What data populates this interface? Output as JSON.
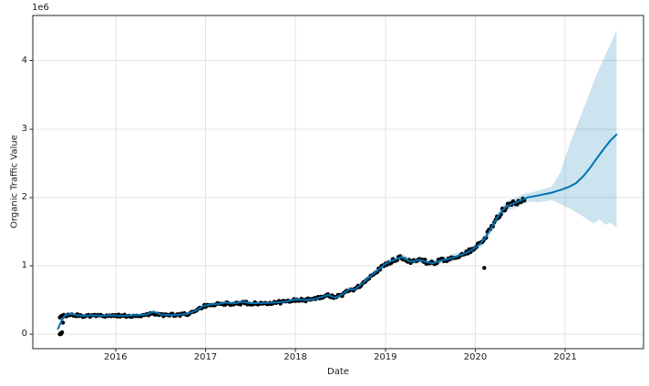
{
  "chart_data": {
    "type": "line",
    "title": "",
    "xlabel": "Date",
    "ylabel": "Organic Traffic Value",
    "y_offset_text": "1e6",
    "y_unit_multiplier": 1000000,
    "value_units": "millions",
    "xlim": [
      2015.08,
      2021.87
    ],
    "ylim": [
      -0.21,
      4.66
    ],
    "xticks": [
      2016,
      2017,
      2018,
      2019,
      2020,
      2021
    ],
    "xtick_labels": [
      "2016",
      "2017",
      "2018",
      "2019",
      "2020",
      "2021"
    ],
    "yticks": [
      0,
      1,
      2,
      3,
      4
    ],
    "ytick_labels": [
      "0",
      "1",
      "2",
      "3",
      "4"
    ],
    "grid": true,
    "legend": false,
    "colors": {
      "line": "#0072B2",
      "band": "rgba(0,114,178,0.2)",
      "points": "#000000",
      "grid": "#e3e3e3",
      "spine": "#262626",
      "background": "#ffffff"
    },
    "series": [
      {
        "name": "observed",
        "type": "scatter",
        "marker": "dot",
        "marker_radius": 2.2,
        "backbone": [
          [
            2015.38,
            0.26
          ],
          [
            2015.44,
            0.27
          ],
          [
            2015.5,
            0.285
          ],
          [
            2015.56,
            0.275
          ],
          [
            2015.65,
            0.27
          ],
          [
            2015.75,
            0.275
          ],
          [
            2015.85,
            0.27
          ],
          [
            2015.95,
            0.275
          ],
          [
            2016.05,
            0.27
          ],
          [
            2016.15,
            0.27
          ],
          [
            2016.25,
            0.275
          ],
          [
            2016.35,
            0.285
          ],
          [
            2016.42,
            0.3
          ],
          [
            2016.5,
            0.285
          ],
          [
            2016.6,
            0.28
          ],
          [
            2016.7,
            0.285
          ],
          [
            2016.8,
            0.295
          ],
          [
            2016.9,
            0.34
          ],
          [
            2016.97,
            0.405
          ],
          [
            2017.05,
            0.43
          ],
          [
            2017.15,
            0.44
          ],
          [
            2017.22,
            0.45
          ],
          [
            2017.3,
            0.445
          ],
          [
            2017.42,
            0.46
          ],
          [
            2017.5,
            0.45
          ],
          [
            2017.6,
            0.455
          ],
          [
            2017.7,
            0.46
          ],
          [
            2017.8,
            0.465
          ],
          [
            2017.9,
            0.475
          ],
          [
            2018.0,
            0.505
          ],
          [
            2018.1,
            0.5
          ],
          [
            2018.21,
            0.51
          ],
          [
            2018.3,
            0.55
          ],
          [
            2018.36,
            0.575
          ],
          [
            2018.44,
            0.54
          ],
          [
            2018.52,
            0.58
          ],
          [
            2018.6,
            0.655
          ],
          [
            2018.66,
            0.65
          ],
          [
            2018.73,
            0.73
          ],
          [
            2018.82,
            0.83
          ],
          [
            2018.91,
            0.93
          ],
          [
            2019.0,
            1.03
          ],
          [
            2019.1,
            1.09
          ],
          [
            2019.18,
            1.13
          ],
          [
            2019.28,
            1.06
          ],
          [
            2019.38,
            1.09
          ],
          [
            2019.47,
            1.05
          ],
          [
            2019.53,
            1.04
          ],
          [
            2019.62,
            1.08
          ],
          [
            2019.7,
            1.1
          ],
          [
            2019.8,
            1.14
          ],
          [
            2019.9,
            1.19
          ],
          [
            2019.98,
            1.25
          ],
          [
            2020.06,
            1.33
          ],
          [
            2020.12,
            1.43
          ],
          [
            2020.18,
            1.56
          ],
          [
            2020.24,
            1.7
          ],
          [
            2020.3,
            1.81
          ],
          [
            2020.36,
            1.88
          ],
          [
            2020.42,
            1.91
          ],
          [
            2020.48,
            1.93
          ],
          [
            2020.56,
            1.95
          ]
        ],
        "outliers": [
          [
            2015.38,
            0.0
          ],
          [
            2015.39,
            0.015
          ],
          [
            2015.395,
            0.005
          ],
          [
            2015.405,
            0.03
          ],
          [
            2015.415,
            0.17
          ],
          [
            2020.1,
            0.97
          ]
        ]
      },
      {
        "name": "fit_line",
        "type": "line",
        "width": 2,
        "points": [
          [
            2015.36,
            0.08
          ],
          [
            2015.4,
            0.2
          ],
          [
            2015.44,
            0.28
          ],
          [
            2015.5,
            0.3
          ],
          [
            2015.56,
            0.28
          ],
          [
            2015.65,
            0.27
          ],
          [
            2015.75,
            0.28
          ],
          [
            2015.85,
            0.27
          ],
          [
            2015.95,
            0.28
          ],
          [
            2016.05,
            0.27
          ],
          [
            2016.15,
            0.275
          ],
          [
            2016.25,
            0.28
          ],
          [
            2016.35,
            0.29
          ],
          [
            2016.42,
            0.33
          ],
          [
            2016.5,
            0.29
          ],
          [
            2016.6,
            0.28
          ],
          [
            2016.7,
            0.285
          ],
          [
            2016.8,
            0.3
          ],
          [
            2016.9,
            0.35
          ],
          [
            2016.97,
            0.41
          ],
          [
            2017.05,
            0.435
          ],
          [
            2017.15,
            0.445
          ],
          [
            2017.22,
            0.465
          ],
          [
            2017.3,
            0.45
          ],
          [
            2017.42,
            0.475
          ],
          [
            2017.5,
            0.455
          ],
          [
            2017.6,
            0.455
          ],
          [
            2017.7,
            0.46
          ],
          [
            2017.8,
            0.465
          ],
          [
            2017.9,
            0.48
          ],
          [
            2018.0,
            0.51
          ],
          [
            2018.1,
            0.5
          ],
          [
            2018.21,
            0.515
          ],
          [
            2018.3,
            0.55
          ],
          [
            2018.36,
            0.575
          ],
          [
            2018.44,
            0.535
          ],
          [
            2018.52,
            0.585
          ],
          [
            2018.6,
            0.66
          ],
          [
            2018.66,
            0.655
          ],
          [
            2018.73,
            0.73
          ],
          [
            2018.82,
            0.83
          ],
          [
            2018.91,
            0.93
          ],
          [
            2019.0,
            1.03
          ],
          [
            2019.1,
            1.09
          ],
          [
            2019.18,
            1.13
          ],
          [
            2019.28,
            1.06
          ],
          [
            2019.38,
            1.09
          ],
          [
            2019.47,
            1.05
          ],
          [
            2019.53,
            1.04
          ],
          [
            2019.62,
            1.08
          ],
          [
            2019.7,
            1.1
          ],
          [
            2019.8,
            1.14
          ],
          [
            2019.9,
            1.19
          ],
          [
            2019.98,
            1.25
          ],
          [
            2020.06,
            1.33
          ],
          [
            2020.12,
            1.43
          ],
          [
            2020.18,
            1.56
          ],
          [
            2020.24,
            1.7
          ],
          [
            2020.3,
            1.81
          ],
          [
            2020.36,
            1.88
          ],
          [
            2020.42,
            1.91
          ],
          [
            2020.48,
            1.94
          ],
          [
            2020.58,
            2.0
          ]
        ],
        "history_band_margin": {
          "base": 0.02,
          "scale": 0.028
        }
      },
      {
        "name": "forecast_line",
        "type": "line",
        "width": 2,
        "points": [
          [
            2020.58,
            2.0
          ],
          [
            2020.7,
            2.03
          ],
          [
            2020.85,
            2.07
          ],
          [
            2020.95,
            2.11
          ],
          [
            2021.05,
            2.16
          ],
          [
            2021.12,
            2.21
          ],
          [
            2021.2,
            2.31
          ],
          [
            2021.28,
            2.44
          ],
          [
            2021.36,
            2.59
          ],
          [
            2021.44,
            2.73
          ],
          [
            2021.5,
            2.83
          ],
          [
            2021.57,
            2.92
          ]
        ]
      },
      {
        "name": "uncertainty_band",
        "type": "band",
        "upper": [
          [
            2020.58,
            2.06
          ],
          [
            2020.7,
            2.1
          ],
          [
            2020.85,
            2.16
          ],
          [
            2020.95,
            2.38
          ],
          [
            2021.05,
            2.78
          ],
          [
            2021.15,
            3.12
          ],
          [
            2021.25,
            3.46
          ],
          [
            2021.35,
            3.8
          ],
          [
            2021.45,
            4.1
          ],
          [
            2021.52,
            4.3
          ],
          [
            2021.57,
            4.44
          ]
        ],
        "lower": [
          [
            2020.58,
            1.94
          ],
          [
            2020.7,
            1.93
          ],
          [
            2020.85,
            1.96
          ],
          [
            2020.95,
            1.9
          ],
          [
            2021.05,
            1.84
          ],
          [
            2021.15,
            1.76
          ],
          [
            2021.25,
            1.68
          ],
          [
            2021.32,
            1.62
          ],
          [
            2021.38,
            1.68
          ],
          [
            2021.45,
            1.6
          ],
          [
            2021.5,
            1.63
          ],
          [
            2021.57,
            1.56
          ]
        ]
      }
    ]
  }
}
